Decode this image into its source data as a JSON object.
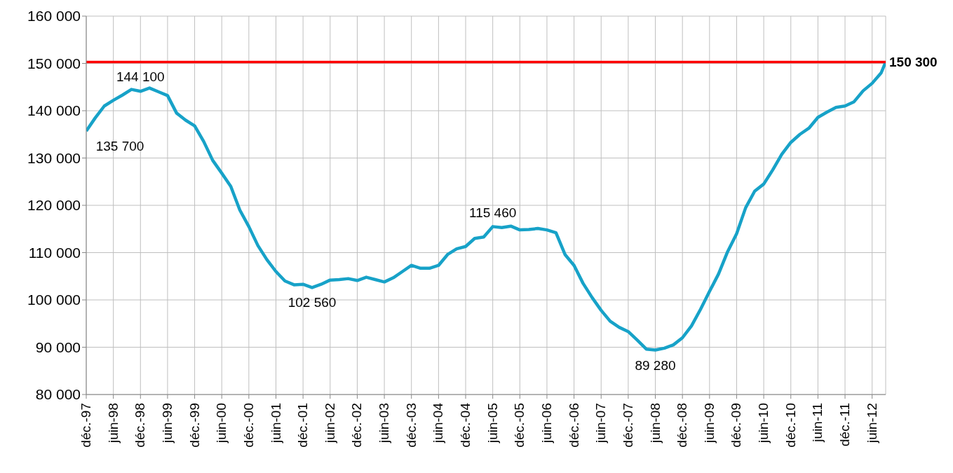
{
  "chart_data": {
    "type": "line",
    "x": [
      "1997-12",
      "1998-02",
      "1998-04",
      "1998-06",
      "1998-08",
      "1998-10",
      "1998-12",
      "1999-02",
      "1999-04",
      "1999-06",
      "1999-08",
      "1999-10",
      "1999-12",
      "2000-02",
      "2000-04",
      "2000-06",
      "2000-08",
      "2000-10",
      "2000-12",
      "2001-02",
      "2001-04",
      "2001-06",
      "2001-08",
      "2001-10",
      "2001-12",
      "2002-02",
      "2002-04",
      "2002-06",
      "2002-08",
      "2002-10",
      "2002-12",
      "2003-02",
      "2003-04",
      "2003-06",
      "2003-08",
      "2003-10",
      "2003-12",
      "2004-02",
      "2004-04",
      "2004-06",
      "2004-08",
      "2004-10",
      "2004-12",
      "2005-02",
      "2005-04",
      "2005-06",
      "2005-08",
      "2005-10",
      "2005-12",
      "2006-02",
      "2006-04",
      "2006-06",
      "2006-08",
      "2006-10",
      "2006-12",
      "2007-02",
      "2007-04",
      "2007-06",
      "2007-08",
      "2007-10",
      "2007-12",
      "2008-02",
      "2008-04",
      "2008-06",
      "2008-08",
      "2008-10",
      "2008-12",
      "2009-02",
      "2009-04",
      "2009-06",
      "2009-08",
      "2009-10",
      "2009-12",
      "2010-02",
      "2010-04",
      "2010-06",
      "2010-08",
      "2010-10",
      "2010-12",
      "2011-02",
      "2011-04",
      "2011-06",
      "2011-08",
      "2011-10",
      "2011-12",
      "2012-02",
      "2012-04",
      "2012-06",
      "2012-08",
      "2012-09"
    ],
    "series": [
      {
        "color": "#17a2c8",
        "values": [
          135700,
          138500,
          141000,
          142200,
          143300,
          144500,
          144100,
          144800,
          144000,
          143200,
          139500,
          138000,
          136800,
          133500,
          129500,
          126800,
          124000,
          119000,
          115500,
          111500,
          108500,
          106000,
          104000,
          103200,
          103300,
          102600,
          103300,
          104200,
          104300,
          104500,
          104100,
          104800,
          104300,
          103800,
          104700,
          106000,
          107300,
          106700,
          106700,
          107300,
          109600,
          110800,
          111300,
          113000,
          113300,
          115500,
          115300,
          115600,
          114800,
          114900,
          115100,
          114800,
          114200,
          109600,
          107300,
          103500,
          100500,
          97800,
          95500,
          94200,
          93300,
          91500,
          89600,
          89400,
          89800,
          90500,
          92000,
          94500,
          98000,
          101800,
          105500,
          110200,
          114000,
          119500,
          123000,
          124500,
          127500,
          130800,
          133300,
          135000,
          136300,
          138600,
          139700,
          140700,
          141000,
          141900,
          144200,
          145800,
          148000,
          150300
        ]
      }
    ],
    "xlim": [
      "1997-12",
      "2012-09"
    ],
    "xticks": [
      {
        "value": "1997-12",
        "label": "déc.-97"
      },
      {
        "value": "1998-06",
        "label": "juin-98"
      },
      {
        "value": "1998-12",
        "label": "déc.-98"
      },
      {
        "value": "1999-06",
        "label": "juin-99"
      },
      {
        "value": "1999-12",
        "label": "déc.-99"
      },
      {
        "value": "2000-06",
        "label": "juin-00"
      },
      {
        "value": "2000-12",
        "label": "déc.-00"
      },
      {
        "value": "2001-06",
        "label": "juin-01"
      },
      {
        "value": "2001-12",
        "label": "déc.-01"
      },
      {
        "value": "2002-06",
        "label": "juin-02"
      },
      {
        "value": "2002-12",
        "label": "déc.-02"
      },
      {
        "value": "2003-06",
        "label": "juin-03"
      },
      {
        "value": "2003-12",
        "label": "déc.-03"
      },
      {
        "value": "2004-06",
        "label": "juin-04"
      },
      {
        "value": "2004-12",
        "label": "déc.-04"
      },
      {
        "value": "2005-06",
        "label": "juin-05"
      },
      {
        "value": "2005-12",
        "label": "déc.-05"
      },
      {
        "value": "2006-06",
        "label": "juin-06"
      },
      {
        "value": "2006-12",
        "label": "déc.-06"
      },
      {
        "value": "2007-06",
        "label": "juin-07"
      },
      {
        "value": "2007-12",
        "label": "déc.-07"
      },
      {
        "value": "2008-06",
        "label": "juin-08"
      },
      {
        "value": "2008-12",
        "label": "déc.-08"
      },
      {
        "value": "2009-06",
        "label": "juin-09"
      },
      {
        "value": "2009-12",
        "label": "déc.-09"
      },
      {
        "value": "2010-06",
        "label": "juin-10"
      },
      {
        "value": "2010-12",
        "label": "déc.-10"
      },
      {
        "value": "2011-06",
        "label": "juin-11"
      },
      {
        "value": "2011-12",
        "label": "déc.-11"
      },
      {
        "value": "2012-06",
        "label": "juin-12"
      }
    ],
    "ylim": [
      80000,
      160000
    ],
    "yticks": [
      {
        "value": 80000,
        "label": "80 000"
      },
      {
        "value": 90000,
        "label": "90 000"
      },
      {
        "value": 100000,
        "label": "100 000"
      },
      {
        "value": 110000,
        "label": "110 000"
      },
      {
        "value": 120000,
        "label": "120 000"
      },
      {
        "value": 130000,
        "label": "130 000"
      },
      {
        "value": 140000,
        "label": "140 000"
      },
      {
        "value": 150000,
        "label": "150 000"
      },
      {
        "value": 160000,
        "label": "160 000"
      }
    ],
    "ref_lines": [
      {
        "axis": "y",
        "value": 150300,
        "label": "150 300",
        "color": "#ff0000"
      }
    ],
    "annotations": [
      {
        "text": "135 700",
        "x": "1997-12",
        "y": 135700
      },
      {
        "text": "144 100",
        "x": "1998-12",
        "y": 144100
      },
      {
        "text": "102 560",
        "x": "2002-02",
        "y": 102560
      },
      {
        "text": "115 460",
        "x": "2005-06",
        "y": 115460
      },
      {
        "text": "89 280",
        "x": "2008-06",
        "y": 89280
      }
    ],
    "grid": true,
    "legend": false,
    "marker": "none",
    "line_style": "solid"
  }
}
